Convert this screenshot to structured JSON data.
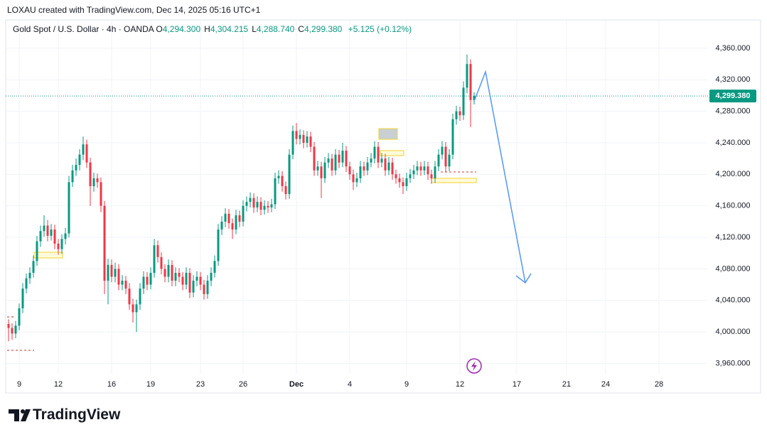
{
  "header": {
    "attribution": "LOXAU created with TradingView.com, Dec 14, 2025 05:16 UTC+1"
  },
  "chart_data": {
    "type": "candlestick",
    "symbol": "Gold Spot / U.S. Dollar · 4h · OANDA",
    "ohlc_legend": [
      {
        "label": "O",
        "value": "4,294.300"
      },
      {
        "label": "H",
        "value": "4,304.215"
      },
      {
        "label": "L",
        "value": "4,288.740"
      },
      {
        "label": "C",
        "value": "4,299.380"
      }
    ],
    "change": "+5.125 (+0.12%)",
    "categories": [
      null,
      null,
      null,
      "9",
      null,
      null,
      null,
      null,
      null,
      null,
      null,
      null,
      null,
      null,
      "12",
      null,
      null,
      null,
      null,
      null,
      null,
      null,
      null,
      null,
      null,
      null,
      null,
      null,
      null,
      "16",
      null,
      null,
      null,
      null,
      null,
      null,
      null,
      null,
      null,
      null,
      "19",
      null,
      null,
      null,
      null,
      null,
      null,
      null,
      null,
      null,
      null,
      null,
      null,
      null,
      "23",
      null,
      null,
      null,
      null,
      null,
      null,
      null,
      null,
      null,
      null,
      null,
      "26",
      null,
      null,
      null,
      null,
      null,
      null,
      null,
      null,
      null,
      null,
      null,
      null,
      null,
      null,
      "Dec",
      null,
      null,
      null,
      null,
      null,
      null,
      null,
      null,
      null,
      null,
      null,
      null,
      null,
      null,
      "4",
      null,
      null,
      null,
      null,
      null,
      null,
      null,
      null,
      null,
      null,
      null,
      null,
      null,
      null,
      null,
      "9",
      null,
      null,
      null,
      null,
      null,
      null,
      null,
      null,
      null,
      null,
      null,
      null,
      null,
      null,
      "12",
      null,
      null,
      null,
      null,
      null,
      null,
      null,
      null,
      null,
      null,
      null,
      null,
      null,
      null,
      null,
      "17",
      null,
      null,
      null,
      null,
      null,
      null,
      null,
      null,
      null,
      null,
      null,
      null,
      null,
      "21",
      null,
      null,
      null,
      null,
      null,
      null,
      null,
      null,
      null,
      null,
      "24",
      null,
      null,
      null,
      null,
      null,
      null,
      null,
      null,
      null,
      null,
      null,
      null,
      null,
      null,
      "28"
    ],
    "open": [
      4010,
      4005,
      3998,
      4008,
      4030,
      4055,
      4068,
      4075,
      4090,
      4115,
      4128,
      4135,
      4122,
      4130,
      4112,
      4105,
      4118,
      4125,
      4190,
      4205,
      4212,
      4225,
      4238,
      4215,
      4185,
      4195,
      4190,
      4160,
      4065,
      4085,
      4070,
      4080,
      4060,
      4065,
      4055,
      4035,
      4025,
      4035,
      4055,
      4070,
      4060,
      4075,
      4110,
      4095,
      4080,
      4070,
      4085,
      4065,
      4075,
      4070,
      4060,
      4075,
      4050,
      4065,
      4070,
      4060,
      4048,
      4065,
      4075,
      4090,
      4130,
      4140,
      4150,
      4138,
      4130,
      4148,
      4140,
      4160,
      4165,
      4170,
      4158,
      4165,
      4155,
      4160,
      4158,
      4162,
      4195,
      4198,
      4185,
      4175,
      4225,
      4255,
      4245,
      4250,
      4240,
      4248,
      4235,
      4205,
      4210,
      4195,
      4215,
      4220,
      4205,
      4225,
      4215,
      4230,
      4210,
      4200,
      4190,
      4195,
      4210,
      4205,
      4215,
      4220,
      4235,
      4215,
      4220,
      4205,
      4215,
      4200,
      4195,
      4190,
      4185,
      4195,
      4200,
      4205,
      4210,
      4205,
      4210,
      4200,
      4195,
      4210,
      4225,
      4235,
      4210,
      4225,
      4270,
      4280,
      4275,
      4310,
      4340,
      4294.3,
      null,
      null,
      null,
      null,
      null,
      null,
      null,
      null,
      null,
      null,
      null,
      null,
      null,
      null,
      null,
      null,
      null,
      null,
      null,
      null,
      null,
      null,
      null,
      null,
      null,
      null,
      null,
      null,
      null,
      null,
      null,
      null,
      null,
      null,
      null,
      null,
      null,
      null,
      null,
      null,
      null,
      null,
      null,
      null,
      null,
      null,
      null,
      null,
      null,
      null,
      null,
      null
    ],
    "high": [
      4016,
      4011,
      4014,
      4036,
      4062,
      4074,
      4082,
      4097,
      4122,
      4135,
      4148,
      4142,
      4137,
      4136,
      4118,
      4124,
      4132,
      4198,
      4212,
      4220,
      4232,
      4248,
      4244,
      4221,
      4202,
      4201,
      4196,
      4166,
      4093,
      4092,
      4088,
      4086,
      4072,
      4071,
      4062,
      4042,
      4041,
      4062,
      4077,
      4076,
      4082,
      4118,
      4116,
      4101,
      4086,
      4092,
      4091,
      4082,
      4081,
      4076,
      4082,
      4081,
      4072,
      4077,
      4076,
      4066,
      4072,
      4082,
      4097,
      4137,
      4147,
      4157,
      4156,
      4144,
      4155,
      4154,
      4167,
      4172,
      4177,
      4176,
      4172,
      4171,
      4167,
      4166,
      4169,
      4202,
      4205,
      4204,
      4191,
      4232,
      4262,
      4265,
      4257,
      4256,
      4255,
      4254,
      4241,
      4217,
      4216,
      4222,
      4227,
      4226,
      4232,
      4231,
      4240,
      4236,
      4216,
      4206,
      4202,
      4217,
      4216,
      4222,
      4227,
      4242,
      4241,
      4227,
      4226,
      4222,
      4221,
      4206,
      4201,
      4196,
      4202,
      4207,
      4212,
      4217,
      4216,
      4217,
      4216,
      4206,
      4217,
      4232,
      4242,
      4241,
      4232,
      4277,
      4287,
      4286,
      4318,
      4352,
      4346,
      4304.215,
      null,
      null,
      null,
      null,
      null,
      null,
      null,
      null,
      null,
      null,
      null,
      null,
      null,
      null,
      null,
      null,
      null,
      null,
      null,
      null,
      null,
      null,
      null,
      null,
      null,
      null,
      null,
      null,
      null,
      null,
      null,
      null,
      null,
      null,
      null,
      null,
      null,
      null,
      null,
      null,
      null,
      null,
      null,
      null,
      null,
      null,
      null,
      null,
      null,
      null,
      null,
      null
    ],
    "low": [
      3988,
      3990,
      3992,
      4002,
      4024,
      4049,
      4061,
      4069,
      4084,
      4108,
      4121,
      4115,
      4116,
      4105,
      4098,
      4099,
      4111,
      4120,
      4184,
      4198,
      4205,
      4218,
      4208,
      4160,
      4178,
      4183,
      4152,
      4048,
      4035,
      4063,
      4063,
      4053,
      4053,
      4048,
      4028,
      4012,
      4000,
      4028,
      4048,
      4053,
      4054,
      4069,
      4088,
      4073,
      4063,
      4063,
      4058,
      4058,
      4063,
      4053,
      4054,
      4043,
      4044,
      4058,
      4053,
      4041,
      4042,
      4058,
      4069,
      4084,
      4123,
      4133,
      4131,
      4118,
      4124,
      4133,
      4134,
      4153,
      4158,
      4151,
      4152,
      4148,
      4149,
      4151,
      4152,
      4156,
      4188,
      4178,
      4168,
      4169,
      4219,
      4238,
      4238,
      4233,
      4234,
      4228,
      4198,
      4198,
      4170,
      4189,
      4208,
      4198,
      4199,
      4208,
      4209,
      4203,
      4193,
      4180,
      4184,
      4189,
      4198,
      4199,
      4209,
      4214,
      4208,
      4209,
      4198,
      4199,
      4193,
      4188,
      4183,
      4175,
      4179,
      4189,
      4194,
      4199,
      4198,
      4199,
      4193,
      4188,
      4189,
      4204,
      4219,
      4203,
      4204,
      4219,
      4263,
      4268,
      4269,
      4303,
      4260,
      4288.74,
      null,
      null,
      null,
      null,
      null,
      null,
      null,
      null,
      null,
      null,
      null,
      null,
      null,
      null,
      null,
      null,
      null,
      null,
      null,
      null,
      null,
      null,
      null,
      null,
      null,
      null,
      null,
      null,
      null,
      null,
      null,
      null,
      null,
      null,
      null,
      null,
      null,
      null,
      null,
      null,
      null,
      null,
      null,
      null,
      null,
      null,
      null,
      null,
      null,
      null,
      null,
      null
    ],
    "close": [
      4005,
      3998,
      4008,
      4030,
      4055,
      4068,
      4075,
      4090,
      4115,
      4128,
      4135,
      4122,
      4130,
      4112,
      4105,
      4118,
      4125,
      4190,
      4205,
      4212,
      4225,
      4238,
      4215,
      4185,
      4195,
      4190,
      4160,
      4065,
      4085,
      4070,
      4080,
      4060,
      4065,
      4055,
      4035,
      4025,
      4035,
      4055,
      4070,
      4060,
      4075,
      4110,
      4095,
      4080,
      4070,
      4085,
      4065,
      4075,
      4070,
      4060,
      4075,
      4050,
      4065,
      4070,
      4060,
      4048,
      4065,
      4075,
      4090,
      4130,
      4140,
      4150,
      4138,
      4130,
      4148,
      4140,
      4160,
      4165,
      4170,
      4158,
      4165,
      4155,
      4160,
      4158,
      4162,
      4195,
      4198,
      4185,
      4175,
      4225,
      4255,
      4245,
      4250,
      4240,
      4248,
      4235,
      4205,
      4210,
      4195,
      4215,
      4220,
      4205,
      4225,
      4215,
      4230,
      4210,
      4200,
      4190,
      4195,
      4210,
      4205,
      4215,
      4220,
      4235,
      4215,
      4220,
      4205,
      4215,
      4200,
      4195,
      4190,
      4185,
      4195,
      4200,
      4205,
      4210,
      4205,
      4210,
      4200,
      4195,
      4210,
      4225,
      4235,
      4210,
      4225,
      4270,
      4280,
      4275,
      4310,
      4340,
      4294.3,
      4299.38,
      null,
      null,
      null,
      null,
      null,
      null,
      null,
      null,
      null,
      null,
      null,
      null,
      null,
      null,
      null,
      null,
      null,
      null,
      null,
      null,
      null,
      null,
      null,
      null,
      null,
      null,
      null,
      null,
      null,
      null,
      null,
      null,
      null,
      null,
      null,
      null,
      null,
      null,
      null,
      null,
      null,
      null,
      null,
      null,
      null,
      null,
      null,
      null,
      null,
      null,
      null,
      null
    ],
    "up_color": "#089981",
    "down_color": "#f23645",
    "ylim": [
      3946,
      4396
    ],
    "yticks": [
      {
        "value": 3960,
        "label": "3,960.000"
      },
      {
        "value": 4000,
        "label": "4,000.000"
      },
      {
        "value": 4040,
        "label": "4,040.000"
      },
      {
        "value": 4080,
        "label": "4,080.000"
      },
      {
        "value": 4120,
        "label": "4,120.000"
      },
      {
        "value": 4160,
        "label": "4,160.000"
      },
      {
        "value": 4200,
        "label": "4,200.000"
      },
      {
        "value": 4240,
        "label": "4,240.000"
      },
      {
        "value": 4280,
        "label": "4,280.000"
      },
      {
        "value": 4320,
        "label": "4,320.000"
      },
      {
        "value": 4360,
        "label": "4,360.000"
      }
    ],
    "last_price": {
      "value": 4299.38,
      "label": "4,299.380"
    },
    "grid": true
  },
  "footer": {
    "brand": "TradingView"
  }
}
